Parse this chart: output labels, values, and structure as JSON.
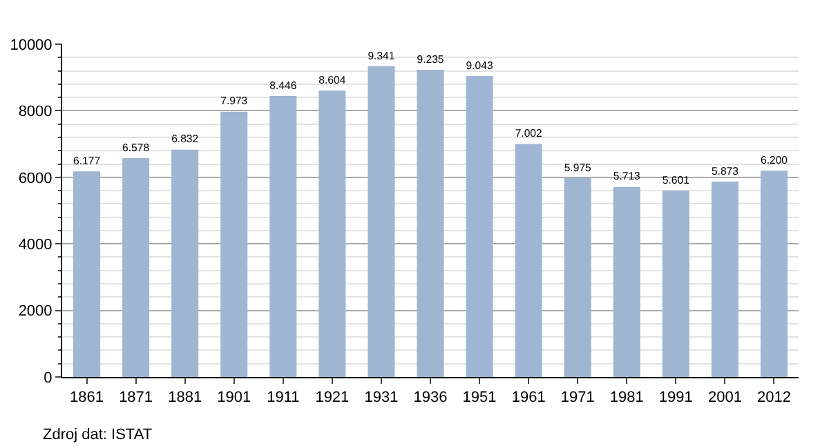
{
  "chart_data": {
    "type": "bar",
    "categories": [
      "1861",
      "1871",
      "1881",
      "1901",
      "1911",
      "1921",
      "1931",
      "1936",
      "1951",
      "1961",
      "1971",
      "1981",
      "1991",
      "2001",
      "2012"
    ],
    "values": [
      6177,
      6578,
      6832,
      7973,
      8446,
      8604,
      9341,
      9235,
      9043,
      7002,
      5975,
      5713,
      5601,
      5873,
      6200
    ],
    "value_labels": [
      "6.177",
      "6.578",
      "6.832",
      "7.973",
      "8.446",
      "8.604",
      "9.341",
      "9.235",
      "9.043",
      "7.002",
      "5.975",
      "5.713",
      "5.601",
      "5.873",
      "6.200"
    ],
    "color": "#9fb6d2",
    "ylim": [
      0,
      10000
    ],
    "yticks": [
      0,
      2000,
      4000,
      6000,
      8000,
      10000
    ],
    "grid": "y",
    "annotations": [
      "Zdroj dat: ISTAT"
    ]
  }
}
